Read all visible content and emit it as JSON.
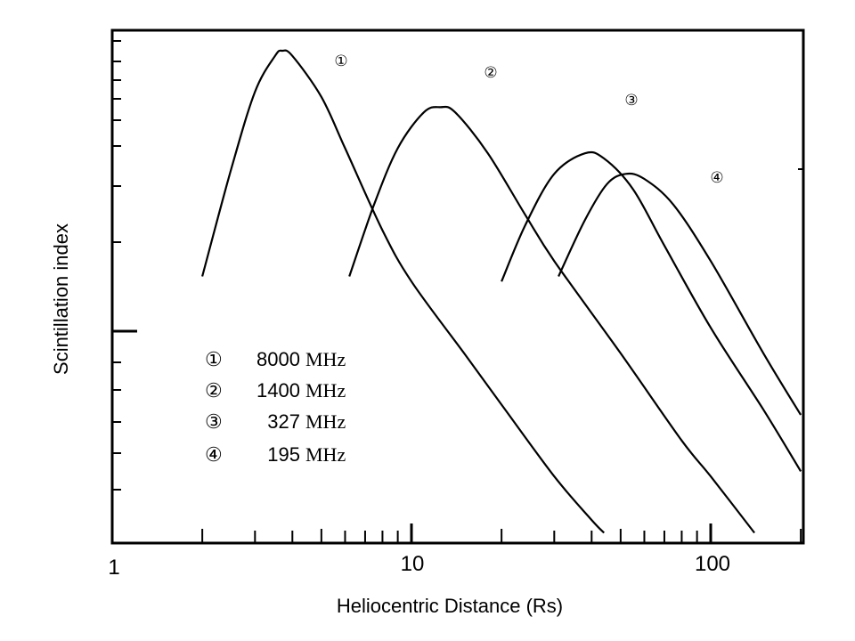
{
  "chart_data": {
    "type": "line",
    "title": "",
    "xlabel": "Heliocentric Distance (Rs)",
    "ylabel": "Scintillation  index",
    "xscale": "log",
    "xlim": [
      1,
      200
    ],
    "x_tick_labels": [
      "1",
      "10",
      "100"
    ],
    "y_tick_labels": [],
    "grid": false,
    "legend_position": "lower-left",
    "series": [
      {
        "marker": "①",
        "name": "8000",
        "unit": "MHz",
        "x": [
          2.0,
          2.5,
          3.0,
          3.5,
          3.7,
          4.0,
          5.0,
          6.0,
          8.0,
          10.0,
          15.0,
          20.0,
          30.0,
          40.0,
          44.0
        ],
        "y": [
          0.52,
          0.73,
          0.88,
          0.95,
          0.96,
          0.95,
          0.87,
          0.77,
          0.61,
          0.51,
          0.37,
          0.27,
          0.13,
          0.045,
          0.02
        ]
      },
      {
        "marker": "②",
        "name": "1400",
        "unit": "MHz",
        "x": [
          6.2,
          7.5,
          9.0,
          11.0,
          12.5,
          14.0,
          18.0,
          24.0,
          30.0,
          50.0,
          80.0,
          100.0,
          140.0
        ],
        "y": [
          0.52,
          0.66,
          0.77,
          0.84,
          0.85,
          0.84,
          0.76,
          0.64,
          0.55,
          0.37,
          0.2,
          0.13,
          0.02
        ]
      },
      {
        "marker": "③",
        "name": "327",
        "unit": "MHz",
        "x": [
          20.0,
          24.0,
          30.0,
          38.0,
          44.0,
          55.0,
          70.0,
          100.0,
          150.0,
          200.0
        ],
        "y": [
          0.51,
          0.62,
          0.72,
          0.76,
          0.75,
          0.69,
          0.58,
          0.42,
          0.26,
          0.14
        ]
      },
      {
        "marker": "④",
        "name": "195",
        "unit": "MHz",
        "x": [
          31.0,
          38.0,
          45.0,
          52.0,
          60.0,
          75.0,
          100.0,
          150.0,
          200.0
        ],
        "y": [
          0.52,
          0.63,
          0.7,
          0.72,
          0.71,
          0.66,
          0.55,
          0.37,
          0.25
        ]
      }
    ]
  }
}
